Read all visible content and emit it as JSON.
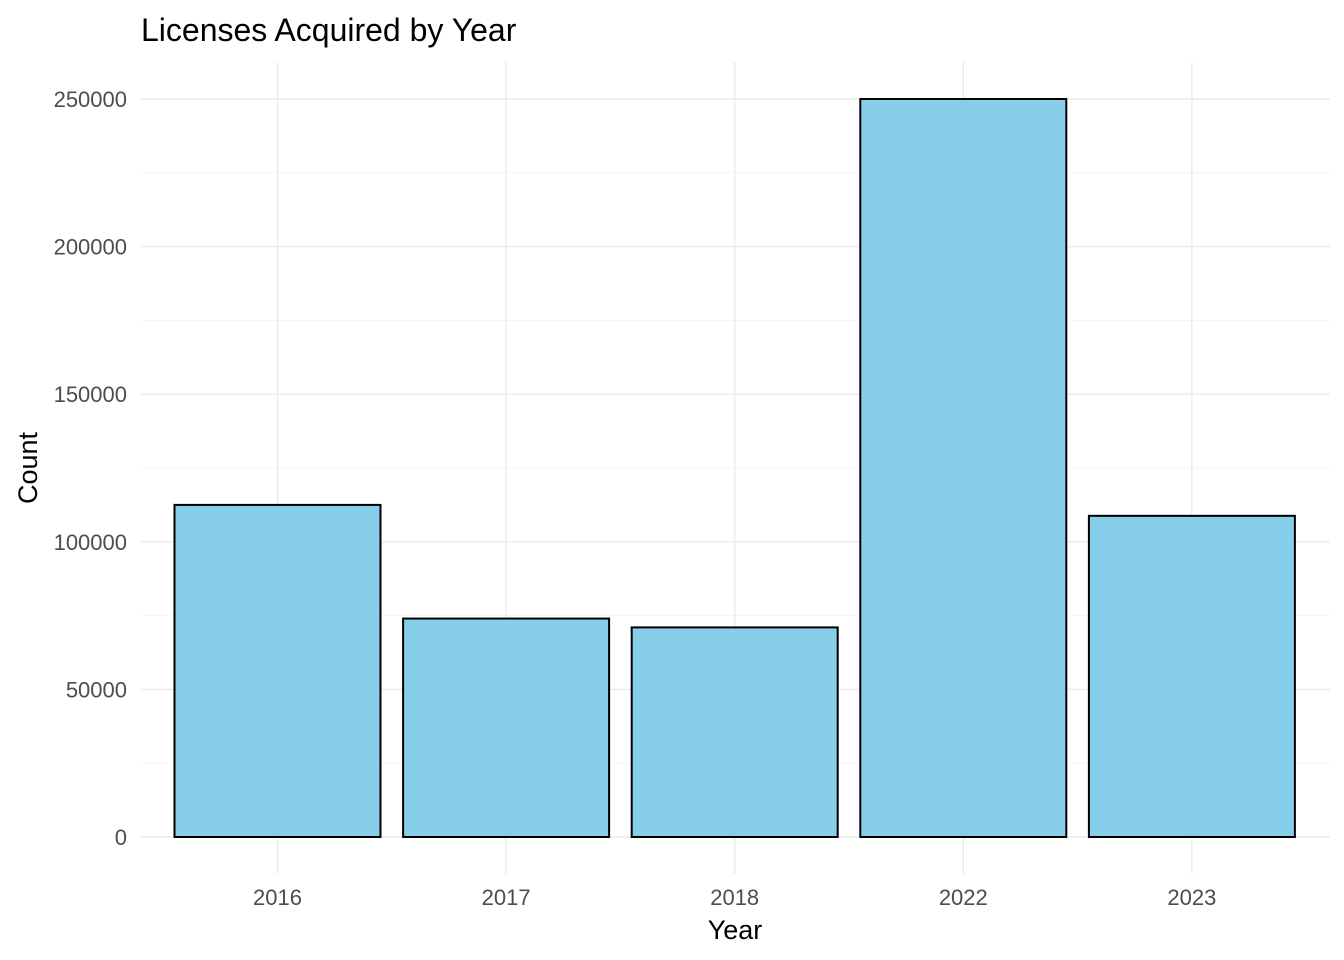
{
  "chart_data": {
    "type": "bar",
    "title": "Licenses Acquired by Year",
    "xlabel": "Year",
    "ylabel": "Count",
    "categories": [
      "2016",
      "2017",
      "2018",
      "2022",
      "2023"
    ],
    "values": [
      112500,
      74000,
      71000,
      250000,
      108800
    ],
    "ylim": [
      0,
      250000
    ],
    "yticks": [
      0,
      50000,
      100000,
      150000,
      200000,
      250000
    ],
    "ytick_labels": [
      "0",
      "50000",
      "100000",
      "150000",
      "200000",
      "250000"
    ],
    "grid": true,
    "legend": "none",
    "colors": {
      "bar_fill": "#87CEEB",
      "bar_outline": "#000000"
    }
  }
}
